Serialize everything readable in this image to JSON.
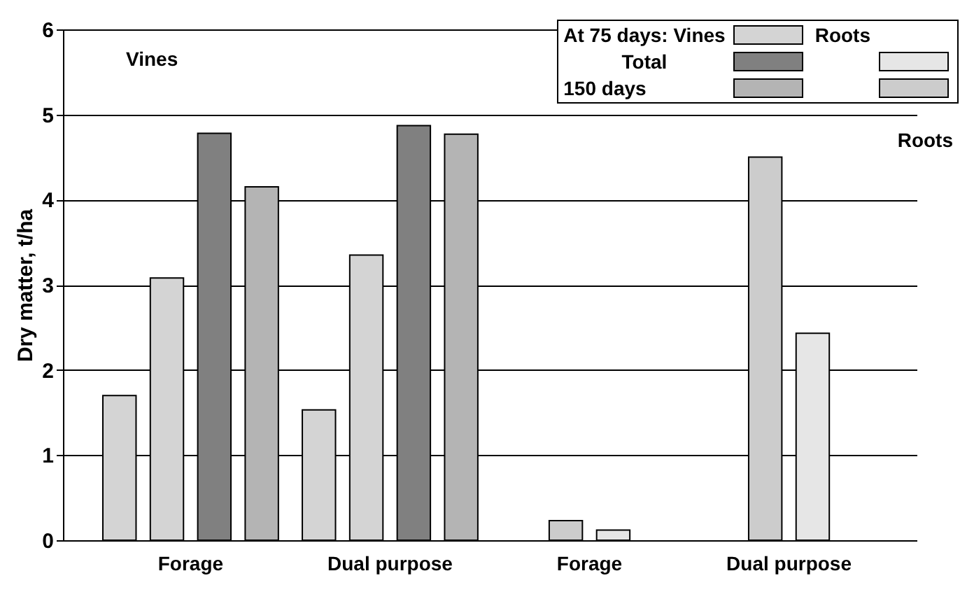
{
  "chart_data": {
    "type": "bar",
    "ylabel": "Dry matter, t/ha",
    "categories": [
      "Forage",
      "Dual purpose",
      "Forage",
      "Dual purpose"
    ],
    "series": [
      {
        "color": "#d4d4d4",
        "values": [
          1.7,
          1.53,
          null,
          null
        ]
      },
      {
        "color": "#d4d4d4",
        "values": [
          3.08,
          3.35,
          null,
          null
        ]
      },
      {
        "color": "#808080",
        "values": [
          4.78,
          4.87,
          null,
          null
        ]
      },
      {
        "color": "#b4b4b4",
        "values": [
          4.15,
          4.77,
          null,
          null
        ]
      },
      {
        "color": "#cccccc",
        "values": [
          null,
          null,
          0.23,
          4.5
        ]
      },
      {
        "color": "#e6e6e6",
        "values": [
          null,
          null,
          0.12,
          2.43
        ]
      }
    ],
    "ylim": [
      0,
      6
    ],
    "yticks": [
      0,
      1,
      2,
      3,
      4,
      5,
      6
    ],
    "grid": "y",
    "annotations": [
      "At 75 days: Vines",
      "Roots",
      "Total",
      "150 days",
      "Vines",
      "Roots"
    ]
  }
}
